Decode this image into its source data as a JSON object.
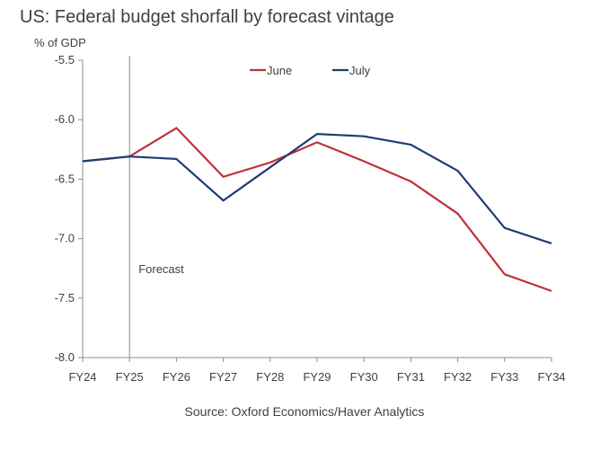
{
  "title": "US: Federal budget shorfall by forecast vintage",
  "ylabel": "% of GDP",
  "source": "Source: Oxford Economics/Haver Analytics",
  "chart_data": {
    "type": "line",
    "title": "US: Federal budget shorfall by forecast vintage",
    "xlabel": "",
    "ylabel": "% of GDP",
    "ylim": [
      -8.0,
      -5.5
    ],
    "yticks": [
      "-5.5",
      "-6.0",
      "-6.5",
      "-7.0",
      "-7.5",
      "-8.0"
    ],
    "categories": [
      "FY24",
      "FY25",
      "FY26",
      "FY27",
      "FY28",
      "FY29",
      "FY30",
      "FY31",
      "FY32",
      "FY33",
      "FY34"
    ],
    "series": [
      {
        "name": "June",
        "color": "#c0303a",
        "values": [
          -6.35,
          -6.31,
          -6.07,
          -6.48,
          -6.36,
          -6.19,
          -6.35,
          -6.52,
          -6.79,
          -7.3,
          -7.44
        ]
      },
      {
        "name": "July",
        "color": "#1f3c73",
        "values": [
          -6.35,
          -6.31,
          -6.33,
          -6.68,
          -6.4,
          -6.12,
          -6.14,
          -6.21,
          -6.43,
          -6.91,
          -7.04
        ]
      }
    ],
    "annotations": [
      {
        "text": "Forecast",
        "x": "FY25"
      }
    ],
    "legend": "top-center",
    "grid": false
  }
}
